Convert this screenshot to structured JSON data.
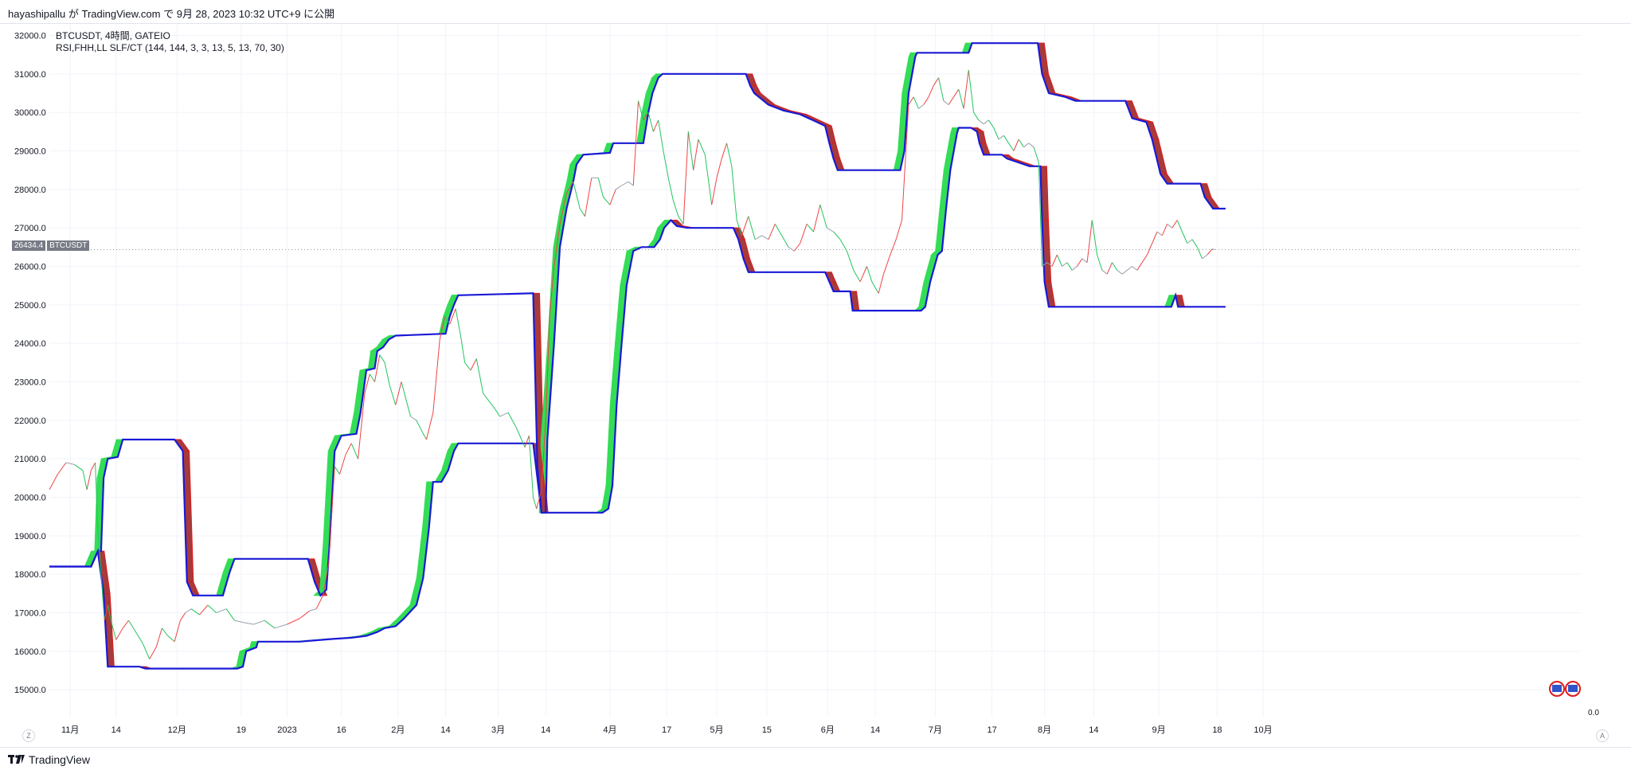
{
  "header": {
    "publish_line": "hayashipallu が TradingView.com で 9月 28, 2023 10:32 UTC+9 に公開"
  },
  "legend": {
    "symbol_line": "BTCUSDT, 4時間, GATEIO",
    "indicator_line": "RSI,FHH,LL SLF/CT (144, 144, 3, 3, 13, 5, 13, 70, 30)"
  },
  "price_label": {
    "value": "26434.4",
    "symbol": "BTCUSDT"
  },
  "scale_corner": {
    "value": "0.0",
    "auto_label": "A",
    "left_label": "Z"
  },
  "brand": {
    "text": "TradingView"
  },
  "colors": {
    "up": "#22c55e",
    "down": "#ef4444",
    "neutral": "#9aa0ab",
    "channel_line": "#1a1ad6",
    "fill_green": "#33dd55",
    "fill_red": "#a83a3a",
    "fill_red_edge": "#e01a1a"
  },
  "chart_data": {
    "type": "line",
    "title": "",
    "xlabel": "",
    "ylabel": "",
    "ylim": [
      14300,
      32300
    ],
    "x_range": [
      0,
      1475
    ],
    "y_ticks": [
      15000,
      16000,
      17000,
      18000,
      19000,
      20000,
      21000,
      22000,
      23000,
      24000,
      25000,
      26000,
      27000,
      28000,
      29000,
      30000,
      31000,
      32000
    ],
    "y_tick_labels": [
      "15000.0",
      "16000.0",
      "17000.0",
      "18000.0",
      "19000.0",
      "20000.0",
      "21000.0",
      "22000.0",
      "23000.0",
      "24000.0",
      "25000.0",
      "26000.0",
      "27000.0",
      "28000.0",
      "29000.0",
      "30000.0",
      "31000.0",
      "32000.0"
    ],
    "x_ticks": [
      {
        "x": 25,
        "label": "11月"
      },
      {
        "x": 80,
        "label": "14"
      },
      {
        "x": 153,
        "label": "12月"
      },
      {
        "x": 230,
        "label": "19"
      },
      {
        "x": 285,
        "label": "2023"
      },
      {
        "x": 350,
        "label": "16"
      },
      {
        "x": 418,
        "label": "2月"
      },
      {
        "x": 475,
        "label": "14"
      },
      {
        "x": 538,
        "label": "3月"
      },
      {
        "x": 595,
        "label": "14"
      },
      {
        "x": 672,
        "label": "4月"
      },
      {
        "x": 740,
        "label": "17"
      },
      {
        "x": 800,
        "label": "5月"
      },
      {
        "x": 860,
        "label": "15"
      },
      {
        "x": 933,
        "label": "6月"
      },
      {
        "x": 990,
        "label": "14"
      },
      {
        "x": 1062,
        "label": "7月"
      },
      {
        "x": 1130,
        "label": "17"
      },
      {
        "x": 1193,
        "label": "8月"
      },
      {
        "x": 1252,
        "label": "14"
      },
      {
        "x": 1330,
        "label": "9月"
      },
      {
        "x": 1400,
        "label": "18"
      },
      {
        "x": 1455,
        "label": "10月"
      }
    ],
    "last_price": 26434.4,
    "upper_channel": [
      [
        0,
        18200
      ],
      [
        50,
        18200
      ],
      [
        58,
        18600
      ],
      [
        62,
        18600
      ],
      [
        65,
        20500
      ],
      [
        70,
        21000
      ],
      [
        82,
        21050
      ],
      [
        88,
        21500
      ],
      [
        150,
        21500
      ],
      [
        160,
        21200
      ],
      [
        165,
        17800
      ],
      [
        172,
        17450
      ],
      [
        208,
        17450
      ],
      [
        216,
        18050
      ],
      [
        222,
        18400
      ],
      [
        310,
        18400
      ],
      [
        318,
        17800
      ],
      [
        325,
        17450
      ],
      [
        332,
        17600
      ],
      [
        336,
        18800
      ],
      [
        342,
        21200
      ],
      [
        350,
        21600
      ],
      [
        368,
        21650
      ],
      [
        373,
        22200
      ],
      [
        380,
        23300
      ],
      [
        390,
        23350
      ],
      [
        393,
        23800
      ],
      [
        400,
        23900
      ],
      [
        407,
        24100
      ],
      [
        415,
        24200
      ],
      [
        475,
        24250
      ],
      [
        480,
        24700
      ],
      [
        485,
        25000
      ],
      [
        490,
        25250
      ],
      [
        580,
        25300
      ],
      [
        585,
        20800
      ],
      [
        590,
        19600
      ],
      [
        595,
        19600
      ],
      [
        597,
        21500
      ],
      [
        605,
        24000
      ],
      [
        612,
        26500
      ],
      [
        620,
        27500
      ],
      [
        628,
        28200
      ],
      [
        632,
        28650
      ],
      [
        640,
        28900
      ],
      [
        672,
        28950
      ],
      [
        676,
        29200
      ],
      [
        712,
        29200
      ],
      [
        718,
        30000
      ],
      [
        723,
        30500
      ],
      [
        730,
        30900
      ],
      [
        735,
        31000
      ],
      [
        835,
        31000
      ],
      [
        840,
        30700
      ],
      [
        845,
        30500
      ],
      [
        862,
        30200
      ],
      [
        880,
        30050
      ],
      [
        900,
        29950
      ],
      [
        915,
        29800
      ],
      [
        930,
        29650
      ],
      [
        935,
        29200
      ],
      [
        940,
        28800
      ],
      [
        945,
        28500
      ],
      [
        1020,
        28500
      ],
      [
        1025,
        29000
      ],
      [
        1030,
        30500
      ],
      [
        1038,
        31450
      ],
      [
        1040,
        31550
      ],
      [
        1102,
        31550
      ],
      [
        1106,
        31800
      ],
      [
        1185,
        31800
      ],
      [
        1190,
        31000
      ],
      [
        1198,
        30500
      ],
      [
        1218,
        30400
      ],
      [
        1230,
        30300
      ],
      [
        1290,
        30300
      ],
      [
        1298,
        29850
      ],
      [
        1315,
        29750
      ],
      [
        1322,
        29300
      ],
      [
        1332,
        28400
      ],
      [
        1340,
        28150
      ],
      [
        1380,
        28150
      ],
      [
        1385,
        27800
      ],
      [
        1395,
        27500
      ],
      [
        1410,
        27500
      ]
    ],
    "lower_channel": [
      [
        0,
        18200
      ],
      [
        50,
        18200
      ],
      [
        58,
        18600
      ],
      [
        65,
        17500
      ],
      [
        70,
        15600
      ],
      [
        108,
        15600
      ],
      [
        115,
        15550
      ],
      [
        225,
        15550
      ],
      [
        232,
        15600
      ],
      [
        236,
        16000
      ],
      [
        248,
        16100
      ],
      [
        250,
        16250
      ],
      [
        300,
        16250
      ],
      [
        340,
        16320
      ],
      [
        362,
        16350
      ],
      [
        380,
        16400
      ],
      [
        393,
        16500
      ],
      [
        402,
        16600
      ],
      [
        415,
        16650
      ],
      [
        425,
        16850
      ],
      [
        440,
        17200
      ],
      [
        448,
        17900
      ],
      [
        455,
        19200
      ],
      [
        460,
        20400
      ],
      [
        470,
        20400
      ],
      [
        478,
        20700
      ],
      [
        485,
        21200
      ],
      [
        490,
        21400
      ],
      [
        580,
        21400
      ],
      [
        590,
        19600
      ],
      [
        600,
        19600
      ],
      [
        663,
        19600
      ],
      [
        670,
        19700
      ],
      [
        675,
        20300
      ],
      [
        680,
        22400
      ],
      [
        686,
        24000
      ],
      [
        692,
        25500
      ],
      [
        700,
        26400
      ],
      [
        710,
        26500
      ],
      [
        725,
        26500
      ],
      [
        732,
        26700
      ],
      [
        737,
        27000
      ],
      [
        745,
        27200
      ],
      [
        752,
        27050
      ],
      [
        765,
        27000
      ],
      [
        820,
        27000
      ],
      [
        826,
        26700
      ],
      [
        832,
        26200
      ],
      [
        838,
        25850
      ],
      [
        930,
        25850
      ],
      [
        935,
        25600
      ],
      [
        940,
        25350
      ],
      [
        960,
        25350
      ],
      [
        963,
        24850
      ],
      [
        1045,
        24850
      ],
      [
        1050,
        24950
      ],
      [
        1056,
        25600
      ],
      [
        1065,
        26300
      ],
      [
        1070,
        26400
      ],
      [
        1075,
        27500
      ],
      [
        1080,
        28500
      ],
      [
        1088,
        29450
      ],
      [
        1090,
        29600
      ],
      [
        1105,
        29600
      ],
      [
        1112,
        29500
      ],
      [
        1115,
        29200
      ],
      [
        1120,
        28900
      ],
      [
        1142,
        28900
      ],
      [
        1148,
        28800
      ],
      [
        1155,
        28750
      ],
      [
        1175,
        28600
      ],
      [
        1188,
        28600
      ],
      [
        1190,
        27200
      ],
      [
        1193,
        25600
      ],
      [
        1198,
        24950
      ],
      [
        1340,
        24950
      ],
      [
        1345,
        24950
      ],
      [
        1350,
        25250
      ],
      [
        1353,
        24950
      ],
      [
        1410,
        24950
      ]
    ],
    "rsi_band_offset": 250,
    "price_series": [
      [
        0,
        20200
      ],
      [
        10,
        20600
      ],
      [
        20,
        20900
      ],
      [
        30,
        20850
      ],
      [
        40,
        20700
      ],
      [
        45,
        20200
      ],
      [
        50,
        20700
      ],
      [
        55,
        20900
      ],
      [
        58,
        19200
      ],
      [
        62,
        18000
      ],
      [
        66,
        16800
      ],
      [
        70,
        17200
      ],
      [
        75,
        16700
      ],
      [
        80,
        16300
      ],
      [
        88,
        16600
      ],
      [
        95,
        16800
      ],
      [
        105,
        16450
      ],
      [
        112,
        16200
      ],
      [
        120,
        15800
      ],
      [
        128,
        16100
      ],
      [
        135,
        16600
      ],
      [
        142,
        16400
      ],
      [
        150,
        16250
      ],
      [
        157,
        16800
      ],
      [
        163,
        17000
      ],
      [
        170,
        17100
      ],
      [
        180,
        16950
      ],
      [
        190,
        17200
      ],
      [
        200,
        17000
      ],
      [
        212,
        17100
      ],
      [
        222,
        16800
      ],
      [
        232,
        16750
      ],
      [
        245,
        16700
      ],
      [
        258,
        16800
      ],
      [
        270,
        16600
      ],
      [
        285,
        16700
      ],
      [
        300,
        16850
      ],
      [
        312,
        17050
      ],
      [
        320,
        17100
      ],
      [
        328,
        17450
      ],
      [
        335,
        18300
      ],
      [
        342,
        20800
      ],
      [
        348,
        20600
      ],
      [
        355,
        21100
      ],
      [
        362,
        21400
      ],
      [
        370,
        21000
      ],
      [
        378,
        22700
      ],
      [
        384,
        23200
      ],
      [
        390,
        23000
      ],
      [
        396,
        23700
      ],
      [
        402,
        23500
      ],
      [
        408,
        22900
      ],
      [
        415,
        22400
      ],
      [
        422,
        23000
      ],
      [
        428,
        22500
      ],
      [
        433,
        22100
      ],
      [
        440,
        22000
      ],
      [
        447,
        21700
      ],
      [
        452,
        21500
      ],
      [
        460,
        22200
      ],
      [
        468,
        24100
      ],
      [
        474,
        24700
      ],
      [
        480,
        24500
      ],
      [
        487,
        24900
      ],
      [
        493,
        24200
      ],
      [
        498,
        23500
      ],
      [
        505,
        23300
      ],
      [
        512,
        23600
      ],
      [
        520,
        22700
      ],
      [
        527,
        22500
      ],
      [
        534,
        22300
      ],
      [
        540,
        22100
      ],
      [
        550,
        22200
      ],
      [
        560,
        21800
      ],
      [
        570,
        21300
      ],
      [
        575,
        21600
      ],
      [
        580,
        20000
      ],
      [
        584,
        19700
      ],
      [
        590,
        20200
      ],
      [
        595,
        22000
      ],
      [
        600,
        24800
      ],
      [
        605,
        26000
      ],
      [
        612,
        27100
      ],
      [
        620,
        27900
      ],
      [
        628,
        28200
      ],
      [
        636,
        27500
      ],
      [
        642,
        27300
      ],
      [
        650,
        28300
      ],
      [
        658,
        28300
      ],
      [
        664,
        27800
      ],
      [
        672,
        27600
      ],
      [
        679,
        28000
      ],
      [
        686,
        28100
      ],
      [
        694,
        28200
      ],
      [
        700,
        28100
      ],
      [
        706,
        30300
      ],
      [
        712,
        29800
      ],
      [
        718,
        30000
      ],
      [
        724,
        29500
      ],
      [
        730,
        29800
      ],
      [
        736,
        29000
      ],
      [
        742,
        28300
      ],
      [
        748,
        27700
      ],
      [
        754,
        27300
      ],
      [
        760,
        27100
      ],
      [
        766,
        29500
      ],
      [
        772,
        28500
      ],
      [
        778,
        29300
      ],
      [
        786,
        28900
      ],
      [
        794,
        27600
      ],
      [
        800,
        28300
      ],
      [
        806,
        28800
      ],
      [
        812,
        29200
      ],
      [
        818,
        28600
      ],
      [
        824,
        27200
      ],
      [
        830,
        26800
      ],
      [
        838,
        27300
      ],
      [
        846,
        26700
      ],
      [
        854,
        26800
      ],
      [
        862,
        26700
      ],
      [
        870,
        27100
      ],
      [
        878,
        26800
      ],
      [
        886,
        26500
      ],
      [
        893,
        26400
      ],
      [
        900,
        26600
      ],
      [
        908,
        27100
      ],
      [
        916,
        26900
      ],
      [
        924,
        27600
      ],
      [
        932,
        27000
      ],
      [
        940,
        26900
      ],
      [
        948,
        26700
      ],
      [
        956,
        26400
      ],
      [
        964,
        25900
      ],
      [
        972,
        25600
      ],
      [
        980,
        26000
      ],
      [
        986,
        25600
      ],
      [
        994,
        25300
      ],
      [
        1000,
        25800
      ],
      [
        1008,
        26300
      ],
      [
        1015,
        26700
      ],
      [
        1022,
        27200
      ],
      [
        1030,
        30200
      ],
      [
        1036,
        30400
      ],
      [
        1042,
        30100
      ],
      [
        1048,
        30200
      ],
      [
        1054,
        30400
      ],
      [
        1060,
        30700
      ],
      [
        1066,
        30900
      ],
      [
        1072,
        30300
      ],
      [
        1078,
        30200
      ],
      [
        1084,
        30400
      ],
      [
        1090,
        30600
      ],
      [
        1096,
        30100
      ],
      [
        1102,
        31100
      ],
      [
        1108,
        30000
      ],
      [
        1114,
        29800
      ],
      [
        1120,
        29700
      ],
      [
        1126,
        29800
      ],
      [
        1132,
        29600
      ],
      [
        1138,
        29300
      ],
      [
        1144,
        29400
      ],
      [
        1150,
        29200
      ],
      [
        1156,
        29000
      ],
      [
        1162,
        29300
      ],
      [
        1168,
        29100
      ],
      [
        1174,
        29200
      ],
      [
        1180,
        29100
      ],
      [
        1186,
        28700
      ],
      [
        1190,
        26000
      ],
      [
        1196,
        26100
      ],
      [
        1202,
        26000
      ],
      [
        1208,
        26300
      ],
      [
        1214,
        26000
      ],
      [
        1220,
        26100
      ],
      [
        1226,
        25900
      ],
      [
        1232,
        26000
      ],
      [
        1238,
        26200
      ],
      [
        1244,
        26100
      ],
      [
        1250,
        27200
      ],
      [
        1256,
        26300
      ],
      [
        1262,
        25900
      ],
      [
        1268,
        25800
      ],
      [
        1274,
        26100
      ],
      [
        1280,
        25900
      ],
      [
        1286,
        25800
      ],
      [
        1292,
        25900
      ],
      [
        1298,
        26000
      ],
      [
        1304,
        25900
      ],
      [
        1310,
        26100
      ],
      [
        1316,
        26300
      ],
      [
        1322,
        26600
      ],
      [
        1328,
        26900
      ],
      [
        1334,
        26800
      ],
      [
        1340,
        27100
      ],
      [
        1346,
        27000
      ],
      [
        1352,
        27200
      ],
      [
        1358,
        26900
      ],
      [
        1364,
        26600
      ],
      [
        1370,
        26700
      ],
      [
        1376,
        26500
      ],
      [
        1382,
        26200
      ],
      [
        1388,
        26300
      ],
      [
        1394,
        26450
      ],
      [
        1397,
        26434.4
      ]
    ]
  }
}
